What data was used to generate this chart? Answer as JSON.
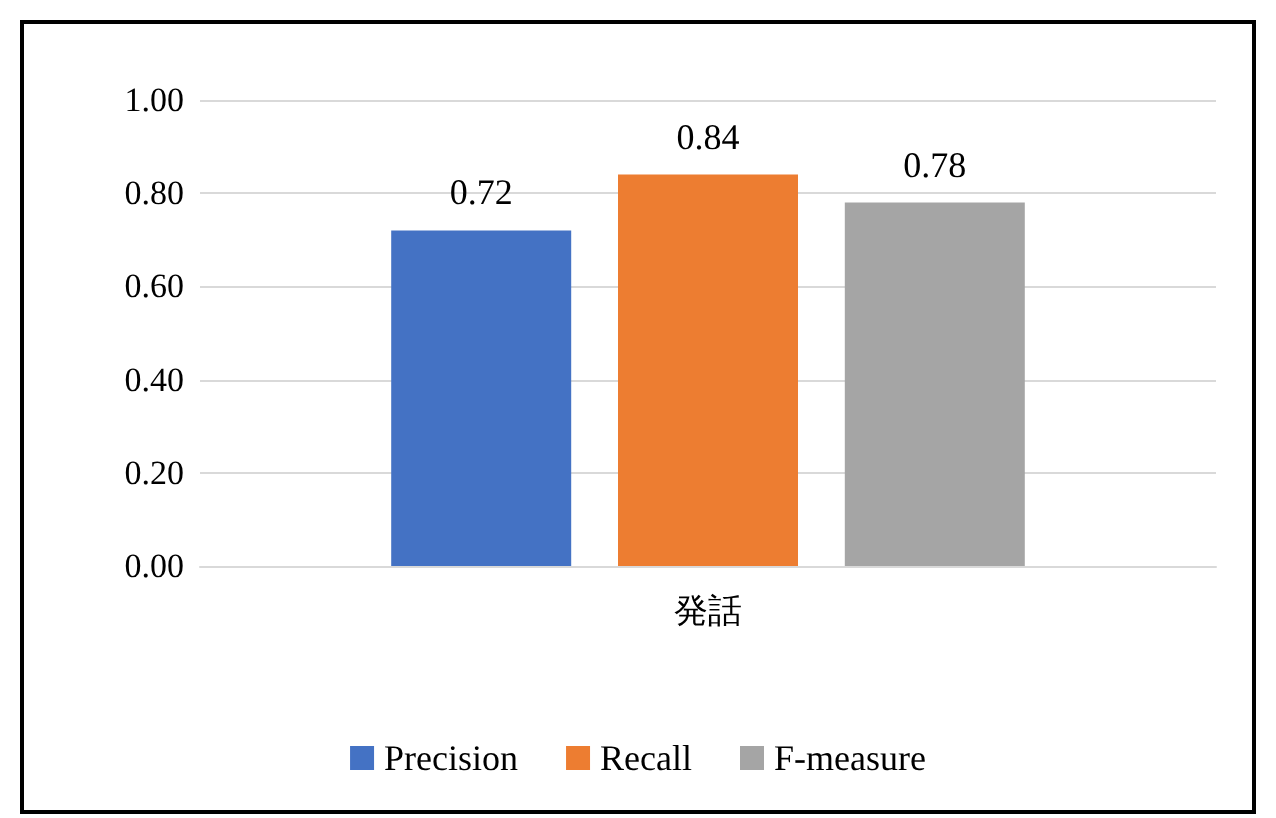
{
  "chart_data": {
    "type": "bar",
    "categories": [
      "発話"
    ],
    "series": [
      {
        "name": "Precision",
        "color": "#4472c4",
        "values": [
          0.72
        ]
      },
      {
        "name": "Recall",
        "color": "#ed7d31",
        "values": [
          0.84
        ]
      },
      {
        "name": "F-measure",
        "color": "#a5a5a5",
        "values": [
          0.78
        ]
      }
    ],
    "ylim": [
      0,
      1
    ],
    "yticks": [
      {
        "value": 0,
        "label": "0.00"
      },
      {
        "value": 0.2,
        "label": "0.20"
      },
      {
        "value": 0.4,
        "label": "0.40"
      },
      {
        "value": 0.6,
        "label": "0.60"
      },
      {
        "value": 0.8,
        "label": "0.80"
      },
      {
        "value": 1,
        "label": "1.00"
      }
    ],
    "grid": "y",
    "legend": "bottom",
    "data_labels": true
  }
}
